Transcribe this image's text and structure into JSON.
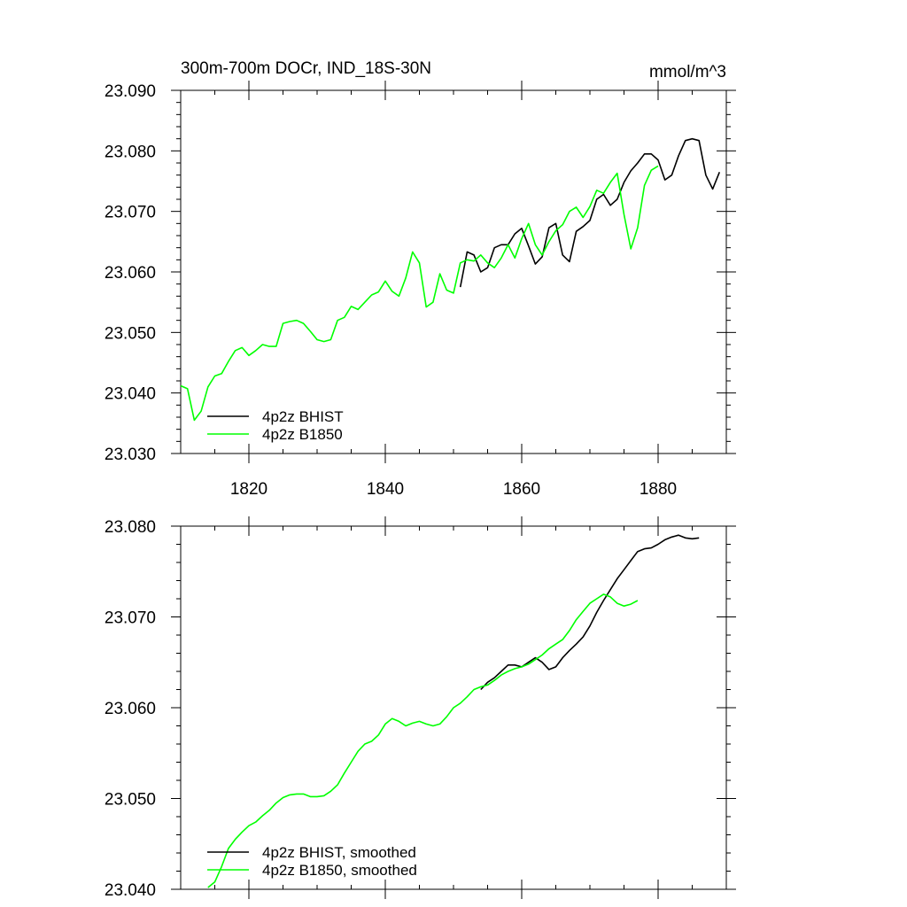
{
  "chart_data": [
    {
      "type": "line",
      "title": "300m-700m DOCr, IND_18S-30N",
      "units": "mmol/m^3",
      "xlim": [
        1810,
        1890
      ],
      "ylim": [
        23.03,
        23.09
      ],
      "xticks": [
        1820,
        1840,
        1860,
        1880
      ],
      "xtick_labels": [
        "1820",
        "1840",
        "1860",
        "1880"
      ],
      "yticks": [
        23.03,
        23.04,
        23.05,
        23.06,
        23.07,
        23.08,
        23.09
      ],
      "ytick_labels": [
        "23.030",
        "23.040",
        "23.050",
        "23.060",
        "23.070",
        "23.080",
        "23.090"
      ],
      "legend_position": "bottom-left",
      "series": [
        {
          "name": "4p2z BHIST",
          "color": "#000000",
          "x": [
            1851,
            1852,
            1853,
            1854,
            1855,
            1856,
            1857,
            1858,
            1859,
            1860,
            1861,
            1862,
            1863,
            1864,
            1865,
            1866,
            1867,
            1868,
            1869,
            1870,
            1871,
            1872,
            1873,
            1874,
            1875,
            1876,
            1877,
            1878,
            1879,
            1880,
            1881,
            1882,
            1883,
            1884,
            1885,
            1886,
            1887,
            1888,
            1889
          ],
          "values": [
            23.0575,
            23.0633,
            23.0628,
            23.06,
            23.0607,
            23.064,
            23.0645,
            23.0645,
            23.0663,
            23.0672,
            23.0643,
            23.0613,
            23.0625,
            23.0673,
            23.068,
            23.0628,
            23.0617,
            23.0667,
            23.0675,
            23.0685,
            23.072,
            23.0728,
            23.071,
            23.072,
            23.0748,
            23.0767,
            23.078,
            23.0795,
            23.0795,
            23.0785,
            23.0752,
            23.076,
            23.0792,
            23.0817,
            23.082,
            23.0817,
            23.076,
            23.0737,
            23.0765
          ]
        },
        {
          "name": "4p2z B1850",
          "color": "#00ff00",
          "x": [
            1810,
            1811,
            1812,
            1813,
            1814,
            1815,
            1816,
            1817,
            1818,
            1819,
            1820,
            1821,
            1822,
            1823,
            1824,
            1825,
            1826,
            1827,
            1828,
            1829,
            1830,
            1831,
            1832,
            1833,
            1834,
            1835,
            1836,
            1837,
            1838,
            1839,
            1840,
            1841,
            1842,
            1843,
            1844,
            1845,
            1846,
            1847,
            1848,
            1849,
            1850,
            1851,
            1852,
            1853,
            1854,
            1855,
            1856,
            1857,
            1858,
            1859,
            1860,
            1861,
            1862,
            1863,
            1864,
            1865,
            1866,
            1867,
            1868,
            1869,
            1870,
            1871,
            1872,
            1873,
            1874,
            1875,
            1876,
            1877,
            1878,
            1879,
            1880
          ],
          "values": [
            23.0412,
            23.0407,
            23.0355,
            23.037,
            23.041,
            23.0428,
            23.0432,
            23.0452,
            23.047,
            23.0475,
            23.0462,
            23.047,
            23.048,
            23.0477,
            23.0477,
            23.0515,
            23.0518,
            23.052,
            23.0515,
            23.0502,
            23.0488,
            23.0485,
            23.0488,
            23.052,
            23.0525,
            23.0543,
            23.0538,
            23.055,
            23.0562,
            23.0567,
            23.0585,
            23.0568,
            23.056,
            23.059,
            23.0633,
            23.0615,
            23.0542,
            23.055,
            23.0597,
            23.057,
            23.0565,
            23.0615,
            23.062,
            23.0618,
            23.0628,
            23.0615,
            23.0607,
            23.0623,
            23.0645,
            23.0623,
            23.0655,
            23.068,
            23.0645,
            23.0628,
            23.065,
            23.0668,
            23.0678,
            23.07,
            23.0707,
            23.069,
            23.0708,
            23.0735,
            23.073,
            23.0748,
            23.0763,
            23.0695,
            23.0638,
            23.0673,
            23.0743,
            23.0768,
            23.0775
          ]
        }
      ]
    },
    {
      "type": "line",
      "title": "",
      "xlim": [
        1810,
        1890
      ],
      "ylim": [
        23.04,
        23.08
      ],
      "xticks": [
        1820,
        1840,
        1860,
        1880
      ],
      "yticks": [
        23.04,
        23.05,
        23.06,
        23.07,
        23.08
      ],
      "ytick_labels": [
        "23.040",
        "23.050",
        "23.060",
        "23.070",
        "23.080"
      ],
      "legend_position": "bottom-left",
      "series": [
        {
          "name": "4p2z BHIST, smoothed",
          "color": "#000000",
          "x": [
            1854,
            1855,
            1856,
            1857,
            1858,
            1859,
            1860,
            1861,
            1862,
            1863,
            1864,
            1865,
            1866,
            1867,
            1868,
            1869,
            1870,
            1871,
            1872,
            1873,
            1874,
            1875,
            1876,
            1877,
            1878,
            1879,
            1880,
            1881,
            1882,
            1883,
            1884,
            1885,
            1886
          ],
          "values": [
            23.062,
            23.0628,
            23.0633,
            23.064,
            23.0647,
            23.0647,
            23.0645,
            23.065,
            23.0655,
            23.065,
            23.0642,
            23.0645,
            23.0655,
            23.0663,
            23.067,
            23.0678,
            23.069,
            23.0705,
            23.0718,
            23.073,
            23.0742,
            23.0752,
            23.0762,
            23.0772,
            23.0775,
            23.0776,
            23.078,
            23.0785,
            23.0788,
            23.079,
            23.0787,
            23.0786,
            23.0787
          ]
        },
        {
          "name": "4p2z B1850, smoothed",
          "color": "#00ff00",
          "x": [
            1814,
            1815,
            1816,
            1817,
            1818,
            1819,
            1820,
            1821,
            1822,
            1823,
            1824,
            1825,
            1826,
            1827,
            1828,
            1829,
            1830,
            1831,
            1832,
            1833,
            1834,
            1835,
            1836,
            1837,
            1838,
            1839,
            1840,
            1841,
            1842,
            1843,
            1844,
            1845,
            1846,
            1847,
            1848,
            1849,
            1850,
            1851,
            1852,
            1853,
            1854,
            1855,
            1856,
            1857,
            1858,
            1859,
            1860,
            1861,
            1862,
            1863,
            1864,
            1865,
            1866,
            1867,
            1868,
            1869,
            1870,
            1871,
            1872,
            1873,
            1874,
            1875,
            1876,
            1877
          ],
          "values": [
            23.0402,
            23.0408,
            23.0425,
            23.0445,
            23.0455,
            23.0463,
            23.047,
            23.0474,
            23.0481,
            23.0487,
            23.0495,
            23.0501,
            23.0504,
            23.0505,
            23.0505,
            23.0502,
            23.0502,
            23.0503,
            23.0508,
            23.0515,
            23.0528,
            23.054,
            23.0552,
            23.056,
            23.0563,
            23.057,
            23.0582,
            23.0588,
            23.0585,
            23.058,
            23.0583,
            23.0585,
            23.0582,
            23.058,
            23.0582,
            23.059,
            23.06,
            23.0605,
            23.0612,
            23.062,
            23.0623,
            23.0625,
            23.063,
            23.0636,
            23.064,
            23.0643,
            23.0645,
            23.0648,
            23.0653,
            23.0658,
            23.0665,
            23.067,
            23.0675,
            23.0685,
            23.0697,
            23.0706,
            23.0715,
            23.072,
            23.0725,
            23.0722,
            23.0715,
            23.0712,
            23.0714,
            23.0718
          ]
        }
      ]
    }
  ]
}
